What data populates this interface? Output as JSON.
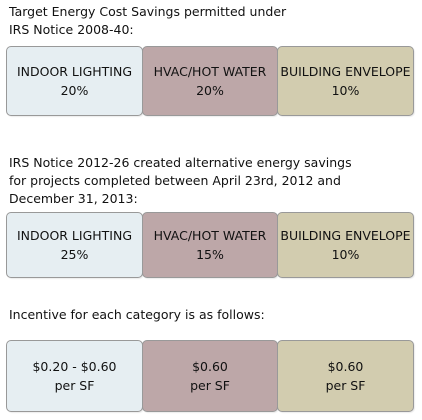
{
  "section1": {
    "heading": "Target Energy Cost Savings permitted under\nIRS Notice 2008-40:",
    "boxes": [
      {
        "category": "INDOOR LIGHTING",
        "value": "20%"
      },
      {
        "category": "HVAC/HOT WATER",
        "value": "20%"
      },
      {
        "category": "BUILDING ENVELOPE",
        "value": "10%"
      }
    ]
  },
  "section2": {
    "heading": "IRS Notice 2012-26 created alternative energy savings\nfor projects completed between April 23rd, 2012 and\nDecember 31, 2013:",
    "boxes": [
      {
        "category": "INDOOR LIGHTING",
        "value": "25%"
      },
      {
        "category": "HVAC/HOT WATER",
        "value": "15%"
      },
      {
        "category": "BUILDING ENVELOPE",
        "value": "10%"
      }
    ]
  },
  "section3": {
    "heading": "Incentive for each category is as follows:",
    "boxes": [
      {
        "amount": "$0.20 - $0.60",
        "unit": "per SF"
      },
      {
        "amount": "$0.60",
        "unit": "per SF"
      },
      {
        "amount": "$0.60",
        "unit": "per SF"
      }
    ]
  },
  "colors": {
    "lighting_box": "#e6eef2",
    "hvac_box": "#bda7a8",
    "envelope_box": "#d2ccaf"
  }
}
